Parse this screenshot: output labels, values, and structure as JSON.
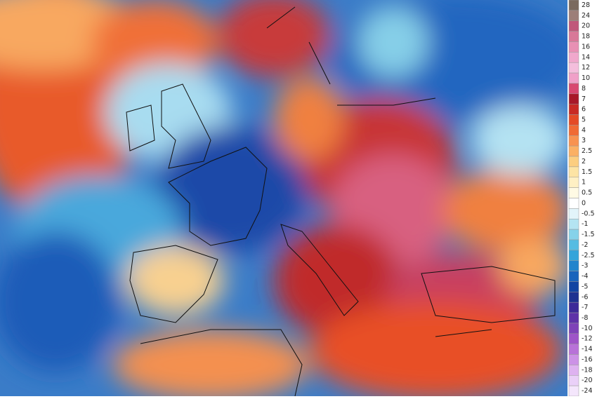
{
  "legend": {
    "levels": [
      28,
      24,
      20,
      18,
      16,
      14,
      12,
      10,
      8,
      7,
      6,
      5,
      4,
      3,
      2.5,
      2,
      1.5,
      1,
      0.5,
      0,
      -0.5,
      -1,
      -1.5,
      -2,
      -2.5,
      -3,
      -4,
      -5,
      -6,
      -7,
      -8,
      -10,
      -12,
      -14,
      -16,
      -18,
      -20,
      -24
    ],
    "colors": [
      "#7a6a5e",
      "#9c7e78",
      "#c0587a",
      "#d87898",
      "#e890b4",
      "#f0a8cc",
      "#f4bedc",
      "#f0a0c8",
      "#d84870",
      "#a81828",
      "#c82a24",
      "#e44a26",
      "#f06a34",
      "#f89250",
      "#fbb064",
      "#fcce80",
      "#fde4a4",
      "#fff0c4",
      "#fffae4",
      "#ffffff",
      "#e2f4fa",
      "#b4e4f2",
      "#86d2ea",
      "#56bce2",
      "#34a4da",
      "#2284cc",
      "#1a64bc",
      "#1244a2",
      "#1e3290",
      "#3c2a98",
      "#5e32a8",
      "#7e42b8",
      "#9e54c8",
      "#b872d8",
      "#cc92e6",
      "#deb2f0",
      "#ead0f8",
      "#f4e6fc"
    ]
  }
}
